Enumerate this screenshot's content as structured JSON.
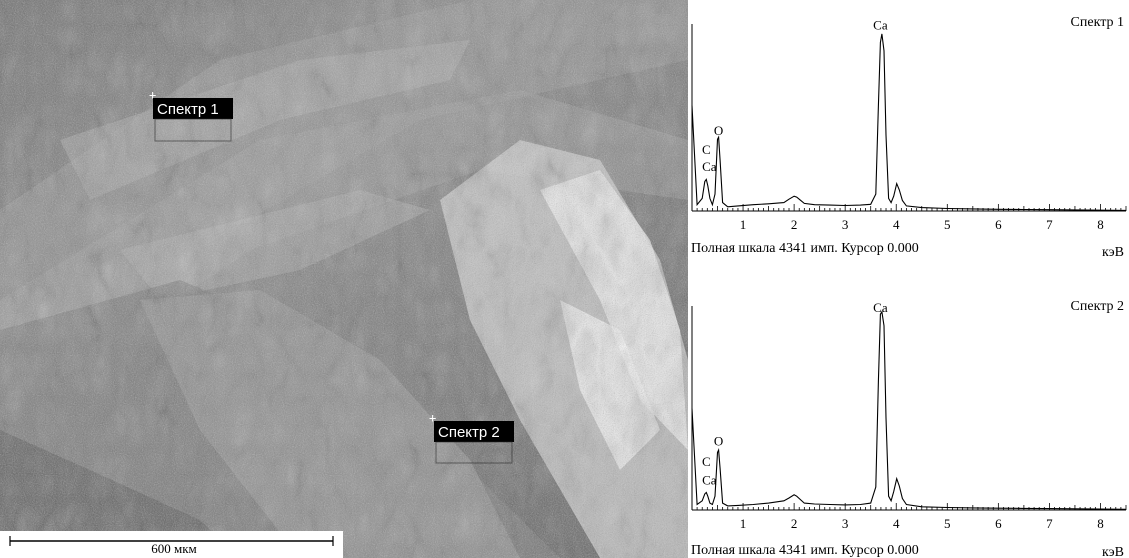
{
  "micrograph": {
    "scale_bar_label": "600 мкм",
    "scale_bar_fraction": 0.5,
    "markers": [
      {
        "label": "Спектр 1"
      },
      {
        "label": "Спектр 2"
      }
    ]
  },
  "chart_data": [
    {
      "type": "line",
      "title": "Спектр 1",
      "xlabel": "кэВ",
      "footer": "Полная шкала 4341 имп. Курсор 0.000",
      "xlim": [
        0,
        8.5
      ],
      "ylim": [
        0,
        4341
      ],
      "x_ticks": [
        1,
        2,
        3,
        4,
        5,
        6,
        7,
        8
      ],
      "peak_labels": [
        {
          "text": "C",
          "x": 0.28,
          "y": 1350
        },
        {
          "text": "Ca",
          "x": 0.34,
          "y": 950
        },
        {
          "text": "O",
          "x": 0.52,
          "y": 1800
        },
        {
          "text": "Ca",
          "x": 3.69,
          "y": 4300
        }
      ],
      "series": [
        {
          "x": [
            0.0,
            0.1,
            0.2,
            0.25,
            0.28,
            0.31,
            0.35,
            0.4,
            0.45,
            0.5,
            0.52,
            0.55,
            0.6,
            0.7,
            0.9,
            1.2,
            1.5,
            1.8,
            1.9,
            2.0,
            2.05,
            2.1,
            2.2,
            2.4,
            2.7,
            3.0,
            3.3,
            3.5,
            3.6,
            3.65,
            3.69,
            3.72,
            3.76,
            3.8,
            3.85,
            3.9,
            3.95,
            4.01,
            4.06,
            4.12,
            4.2,
            4.5,
            5.0,
            5.5,
            6.0,
            6.5,
            7.0,
            7.5,
            8.0,
            8.5
          ],
          "y": [
            2500,
            150,
            300,
            700,
            750,
            600,
            300,
            150,
            400,
            1700,
            1750,
            1200,
            200,
            100,
            120,
            150,
            170,
            200,
            280,
            350,
            330,
            280,
            180,
            150,
            140,
            130,
            140,
            160,
            400,
            2500,
            4000,
            4200,
            3800,
            1800,
            300,
            200,
            350,
            650,
            500,
            250,
            120,
            80,
            60,
            50,
            40,
            35,
            30,
            25,
            20,
            15
          ]
        }
      ]
    },
    {
      "type": "line",
      "title": "Спектр 2",
      "xlabel": "кэВ",
      "footer": "Полная шкала 4341 имп. Курсор 0.000",
      "xlim": [
        0,
        8.5
      ],
      "ylim": [
        0,
        4341
      ],
      "x_ticks": [
        1,
        2,
        3,
        4,
        5,
        6,
        7,
        8
      ],
      "peak_labels": [
        {
          "text": "C",
          "x": 0.28,
          "y": 950
        },
        {
          "text": "Ca",
          "x": 0.34,
          "y": 550
        },
        {
          "text": "O",
          "x": 0.52,
          "y": 1400
        },
        {
          "text": "Ca",
          "x": 3.69,
          "y": 4300
        }
      ],
      "series": [
        {
          "x": [
            0.0,
            0.1,
            0.2,
            0.25,
            0.28,
            0.31,
            0.35,
            0.4,
            0.45,
            0.5,
            0.52,
            0.55,
            0.6,
            0.7,
            0.9,
            1.2,
            1.5,
            1.8,
            1.9,
            2.0,
            2.05,
            2.1,
            2.2,
            2.4,
            2.7,
            3.0,
            3.3,
            3.5,
            3.6,
            3.65,
            3.69,
            3.72,
            3.76,
            3.8,
            3.85,
            3.9,
            3.95,
            4.01,
            4.06,
            4.12,
            4.2,
            4.5,
            5.0,
            5.5,
            6.0,
            6.5,
            7.0,
            7.5,
            8.0,
            8.5
          ],
          "y": [
            2200,
            120,
            200,
            350,
            380,
            300,
            150,
            120,
            300,
            1250,
            1300,
            900,
            150,
            90,
            100,
            120,
            150,
            200,
            260,
            330,
            300,
            250,
            150,
            130,
            120,
            110,
            120,
            150,
            500,
            2800,
            4250,
            4300,
            4000,
            2000,
            300,
            200,
            400,
            680,
            520,
            250,
            120,
            70,
            55,
            45,
            40,
            35,
            30,
            25,
            20,
            15
          ]
        }
      ]
    }
  ]
}
